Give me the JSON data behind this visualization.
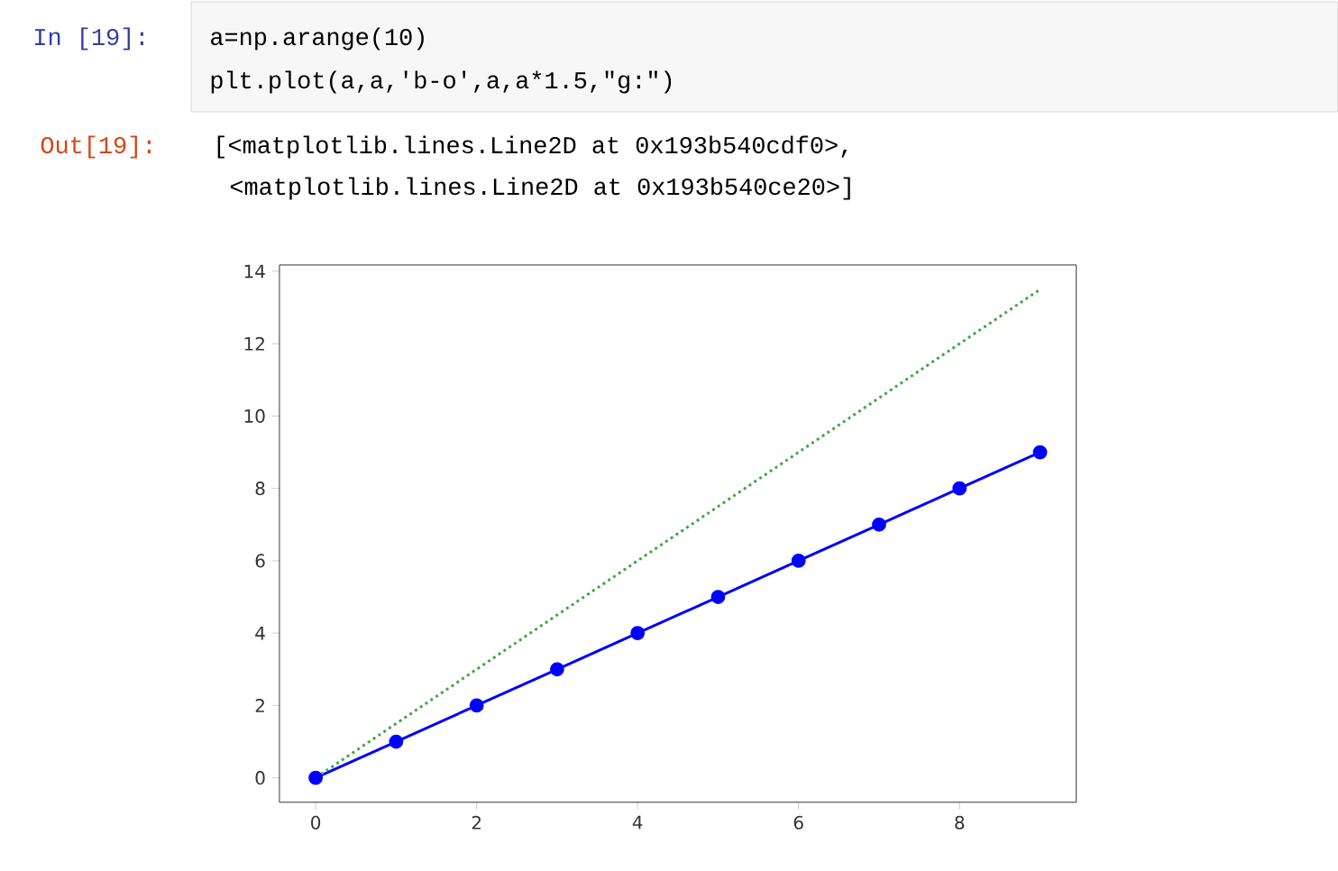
{
  "chart_data": {
    "type": "line",
    "x": [
      0,
      1,
      2,
      3,
      4,
      5,
      6,
      7,
      8,
      9
    ],
    "series": [
      {
        "color": "#0000ff",
        "values": [
          0,
          1,
          2,
          3,
          4,
          5,
          6,
          7,
          8,
          9
        ],
        "marker": "circle",
        "line_style": "solid"
      },
      {
        "color": "#3fa83f",
        "values": [
          0,
          1.5,
          3,
          4.5,
          6,
          7.5,
          9,
          10.5,
          12,
          13.5
        ],
        "marker": "none",
        "line_style": "dotted"
      }
    ],
    "xlim": [
      -0.45,
      9.45
    ],
    "ylim": [
      -0.675,
      14.175
    ],
    "xticks": [
      0,
      2,
      4,
      6,
      8
    ],
    "yticks": [
      0,
      2,
      4,
      6,
      8,
      10,
      12,
      14
    ],
    "annotations": [
      "In [19]:",
      "a=np.arange(10)",
      "plt.plot(a,a,'b-o',a,a*1.5,\"g:\")",
      "Out[19]:",
      "[<matplotlib.lines.Line2D at 0x193b540cdf0>,",
      "<matplotlib.lines.Line2D at 0x193b540ce20>]"
    ]
  }
}
